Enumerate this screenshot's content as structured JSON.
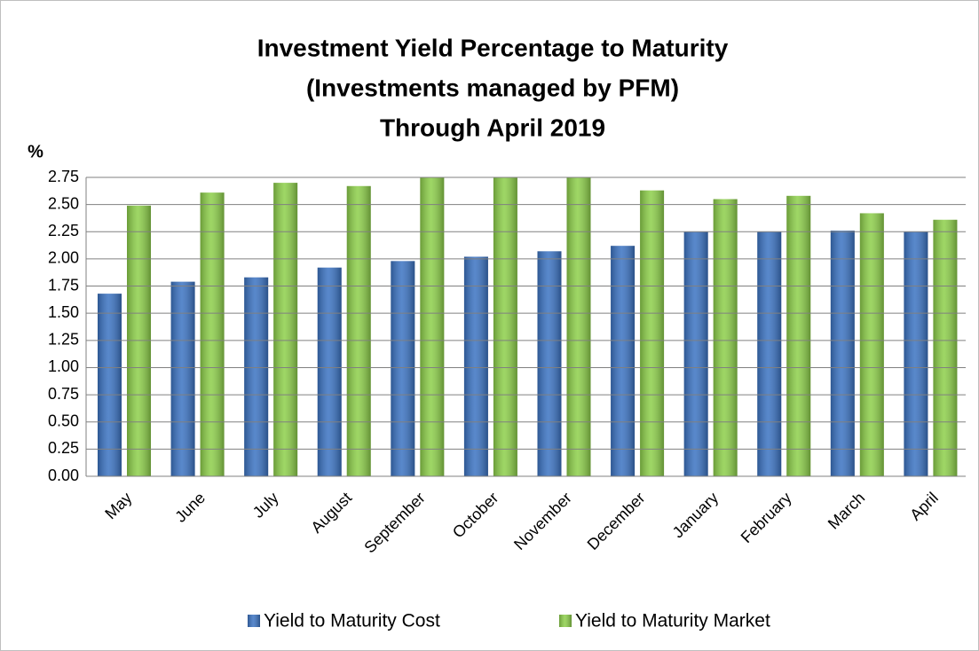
{
  "chart_data": {
    "type": "bar",
    "title": [
      "Investment Yield Percentage to Maturity",
      "(Investments managed by PFM)",
      "Through April 2019"
    ],
    "y_label": "%",
    "categories": [
      "May",
      "June",
      "July",
      "August",
      "September",
      "October",
      "November",
      "December",
      "January",
      "February",
      "March",
      "April"
    ],
    "series": [
      {
        "name": "Yield to Maturity Cost",
        "color": "#3b73c2",
        "values": [
          1.68,
          1.79,
          1.83,
          1.92,
          1.98,
          2.02,
          2.07,
          2.12,
          2.25,
          2.25,
          2.26,
          2.25
        ]
      },
      {
        "name": "Yield to Maturity Market",
        "color": "#8dcf4a",
        "values": [
          2.49,
          2.61,
          2.7,
          2.67,
          2.8,
          2.8,
          2.8,
          2.63,
          2.55,
          2.58,
          2.42,
          2.36
        ]
      }
    ],
    "ylim": [
      0,
      2.75
    ],
    "yticks": [
      {
        "value": 0,
        "label": "0.00"
      },
      {
        "value": 0.25,
        "label": "0.25"
      },
      {
        "value": 0.5,
        "label": "0.50"
      },
      {
        "value": 0.75,
        "label": "0.75"
      },
      {
        "value": 1,
        "label": "1.00"
      },
      {
        "value": 1.25,
        "label": "1.25"
      },
      {
        "value": 1.5,
        "label": "1.50"
      },
      {
        "value": 1.75,
        "label": "1.75"
      },
      {
        "value": 2,
        "label": "2.00"
      },
      {
        "value": 2.25,
        "label": "2.25"
      },
      {
        "value": 2.5,
        "label": "2.50"
      },
      {
        "value": 2.75,
        "label": "2.75"
      }
    ],
    "grid": true,
    "legend": "bottom"
  }
}
